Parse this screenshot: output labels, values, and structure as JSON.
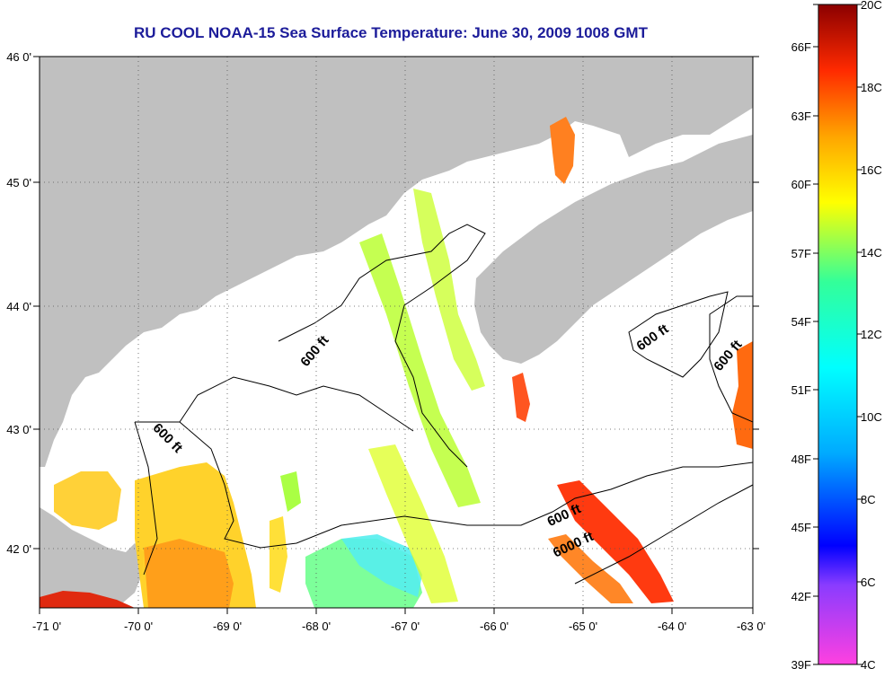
{
  "title": "RU COOL  NOAA-15  Sea Surface Temperature:  June 30, 2009 1008 GMT",
  "map": {
    "lon_ticks": [
      "-71 0'",
      "-70 0'",
      "-69 0'",
      "-68 0'",
      "-67 0'",
      "-66 0'",
      "-65 0'",
      "-64 0'",
      "-63 0'"
    ],
    "lat_ticks": [
      "46 0'",
      "45 0'",
      "44 0'",
      "43 0'",
      "42 0'"
    ],
    "contour_labels": [
      {
        "text": "600 ft"
      },
      {
        "text": "600 ft"
      },
      {
        "text": "600 ft"
      },
      {
        "text": "600 ft"
      },
      {
        "text": "600 ft"
      },
      {
        "text": "6000 ft"
      }
    ],
    "land_color": "#c0c0c0",
    "grid": "dotted"
  },
  "colorbar": {
    "celsius_labels": [
      "20C",
      "18C",
      "16C",
      "14C",
      "12C",
      "10C",
      "8C",
      "6C",
      "4C"
    ],
    "fahrenheit_labels": [
      "66F",
      "63F",
      "60F",
      "57F",
      "54F",
      "51F",
      "48F",
      "45F",
      "42F",
      "39F"
    ],
    "range_c": [
      4,
      20
    ]
  }
}
